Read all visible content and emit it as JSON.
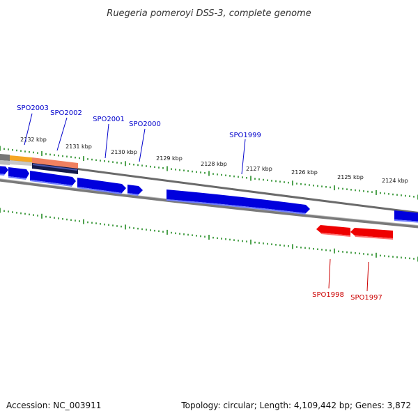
{
  "title": "Ruegeria pomeroyi DSS-3, complete genome",
  "footer": {
    "accession": "Accession: NC_003911",
    "summary": "Topology: circular; Length: 4,109,442 bp; Genes: 3,872"
  },
  "colors": {
    "forward_gene": "#0000dd",
    "reverse_gene": "#ee0000",
    "backbone": "#808080",
    "ticks": "#228b22",
    "cds_bar": "#141a4a",
    "rna_bar": "#f08060",
    "orange_feature": "#f5a623"
  },
  "kbp_labels": [
    "2132 kbp",
    "2131 kbp",
    "2130 kbp",
    "2129 kbp",
    "2128 kbp",
    "2127 kbp",
    "2126 kbp",
    "2125 kbp",
    "2124 kbp"
  ],
  "forward_genes": [
    "SPO2003",
    "SPO2002",
    "SPO2001",
    "SPO2000",
    "SPO1999"
  ],
  "reverse_genes": [
    "SPO1998",
    "SPO1997"
  ]
}
